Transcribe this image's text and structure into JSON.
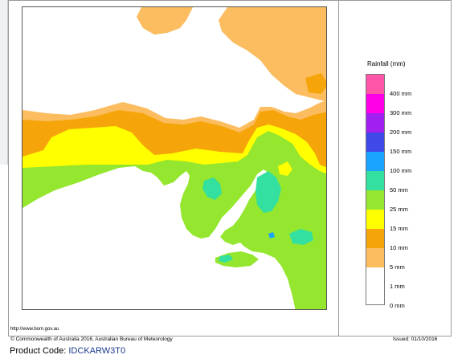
{
  "map": {
    "background_color": "#ffffff",
    "sea_color": "#ffffff"
  },
  "legend": {
    "title": "Rainfall (mm)",
    "categories": [
      {
        "label": "400 mm",
        "color": "#ff55a8"
      },
      {
        "label": "300 mm",
        "color": "#ff00e6"
      },
      {
        "label": "200 mm",
        "color": "#a020f0"
      },
      {
        "label": "150 mm",
        "color": "#3f49e8"
      },
      {
        "label": "100 mm",
        "color": "#1aa3ff"
      },
      {
        "label": "50 mm",
        "color": "#33e0a0"
      },
      {
        "label": "25 mm",
        "color": "#94e62e"
      },
      {
        "label": "15 mm",
        "color": "#ffff00"
      },
      {
        "label": "10 mm",
        "color": "#f5a50a"
      },
      {
        "label": "5 mm",
        "color": "#fbbd5f"
      },
      {
        "label": "1 mm",
        "color": "#ffffff"
      },
      {
        "label": "0 mm",
        "color": null
      }
    ]
  },
  "footer": {
    "url": "http://www.bom.gov.au",
    "copyright": "© Commonwealth of Australia 2016, Australian Bureau of Meteorology",
    "issued": "Issued: 01/10/2016",
    "product_code_label": "Product Code: ",
    "product_code_value": "IDCKARW3T0"
  }
}
